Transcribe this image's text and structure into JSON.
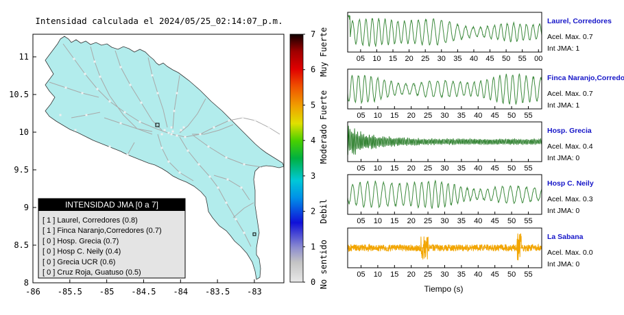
{
  "title": "Intensidad calculada el 2024/05/25_02:14:07_p.m.",
  "colors": {
    "land": "#b2ecec",
    "road": "#a8a8a8",
    "trace": "#3c8a3c",
    "trace_dark": "#0a6a0a",
    "trace_weak": "#f2a500",
    "station_name": "#1515c8"
  },
  "chart_data": [
    {
      "type": "heatmap",
      "x_ticks": [
        "-86",
        "-85.5",
        "-85",
        "-84.5",
        "-84",
        "-83.5",
        "-83"
      ],
      "y_ticks": [
        "11",
        "10.5",
        "10",
        "9.5",
        "9",
        "8.5",
        "8"
      ],
      "xlim": [
        -86,
        -82.6
      ],
      "ylim": [
        8,
        11.3
      ],
      "colorbar": {
        "ticks": [
          "0",
          "1",
          "2",
          "3",
          "4",
          "5",
          "6",
          "7"
        ],
        "range": [
          0,
          7
        ],
        "labels": [
          {
            "text": "No sentido",
            "value": 0.5
          },
          {
            "text": "Debil",
            "value": 2
          },
          {
            "text": "Moderado",
            "value": 3.9
          },
          {
            "text": "Fuerte",
            "value": 5
          },
          {
            "text": "Muy Fuerte",
            "value": 6.5
          }
        ]
      },
      "legend": {
        "title": "INTENSIDAD JMA [0 a 7]",
        "placement": "bottom-left",
        "items": [
          "[ 1 ]  Laurel, Corredores (0.8)",
          "[ 1 ]  Finca Naranjo,Corredores (0.7)",
          "[ 0 ]  Hosp. Grecia (0.7)",
          "[ 0 ]  Hosp C. Neily (0.4)",
          "[ 0 ]  Grecia UCR (0.6)",
          "[ 0 ]  Cruz Roja, Guatuso (0.5)"
        ]
      }
    },
    {
      "type": "line",
      "xlabel": "Tiempo (s)",
      "series": [
        {
          "name": "Laurel, Corredores",
          "acel": "Acel. Max. 0.7",
          "int": "Int JMA: 1",
          "ticks": [
            "05",
            "10",
            "15",
            "20",
            "25",
            "30",
            "35",
            "40",
            "45",
            "50",
            "55",
            "00"
          ],
          "tick_values": [
            5,
            10,
            15,
            20,
            25,
            30,
            35,
            40,
            45,
            50,
            55,
            60
          ],
          "xlim": [
            1,
            61
          ]
        },
        {
          "name": "Finca Naranjo,Corredores",
          "acel": "Acel. Max. 0.7",
          "int": "Int JMA: 1",
          "ticks": [
            "05",
            "10",
            "15",
            "20",
            "25",
            "30",
            "35",
            "40",
            "45",
            "50",
            "55"
          ],
          "tick_values": [
            5,
            10,
            15,
            20,
            25,
            30,
            35,
            40,
            45,
            50,
            55
          ],
          "xlim": [
            1,
            59
          ]
        },
        {
          "name": "Hosp. Grecia",
          "acel": "Acel. Max. 0.4",
          "int": "Int JMA: 0",
          "ticks": [
            "05",
            "10",
            "15",
            "20",
            "25",
            "30",
            "35",
            "40",
            "45",
            "50",
            "55"
          ],
          "tick_values": [
            5,
            10,
            15,
            20,
            25,
            30,
            35,
            40,
            45,
            50,
            55
          ],
          "xlim": [
            1,
            59
          ]
        },
        {
          "name": "Hosp C. Neily",
          "acel": "Acel. Max. 0.3",
          "int": "Int JMA: 0",
          "ticks": [
            "05",
            "10",
            "15",
            "20",
            "25",
            "30",
            "35",
            "40",
            "45",
            "50",
            "55"
          ],
          "tick_values": [
            5,
            10,
            15,
            20,
            25,
            30,
            35,
            40,
            45,
            50,
            55
          ],
          "xlim": [
            1,
            59
          ]
        },
        {
          "name": "La Sabana",
          "acel": "Acel. Max. 0.0",
          "int": "Int JMA: 0",
          "ticks": [
            "05",
            "10",
            "15",
            "20",
            "25",
            "30",
            "35",
            "40",
            "45",
            "50",
            "55"
          ],
          "tick_values": [
            5,
            10,
            15,
            20,
            25,
            30,
            35,
            40,
            45,
            50,
            55
          ],
          "xlim": [
            1,
            59
          ]
        }
      ]
    }
  ]
}
